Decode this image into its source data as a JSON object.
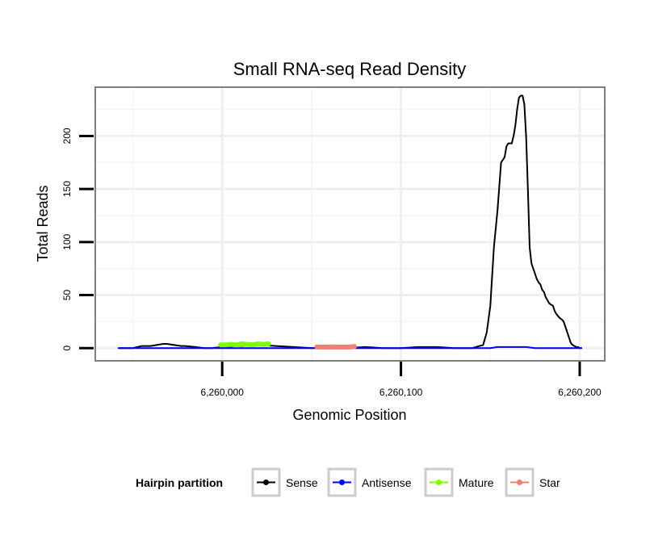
{
  "chart_data": {
    "type": "line",
    "title": "Small RNA-seq Read Density",
    "xlabel": "Genomic Position",
    "ylabel": "Total Reads",
    "xlim": [
      6259929,
      6260214
    ],
    "ylim": [
      -12,
      246
    ],
    "x_ticks": [
      6260000,
      6260100,
      6260200
    ],
    "x_tick_labels": [
      "6,260,000",
      "6,260,100",
      "6,260,200"
    ],
    "y_ticks": [
      0,
      50,
      100,
      150,
      200
    ],
    "y_tick_labels": [
      "0",
      "50",
      "100",
      "150",
      "200"
    ],
    "grid": true,
    "legend": {
      "title": "Hairpin partition",
      "position": "bottom",
      "entries": [
        {
          "label": "Sense",
          "color": "#000000"
        },
        {
          "label": "Antisense",
          "color": "#0000ff"
        },
        {
          "label": "Mature",
          "color": "#7cfc00"
        },
        {
          "label": "Star",
          "color": "#f08070"
        }
      ]
    },
    "series": [
      {
        "name": "Sense",
        "color": "#000000",
        "width": 2,
        "x": [
          6259942,
          6259950,
          6259955,
          6259960,
          6259967,
          6259969,
          6259977,
          6259979,
          6259985,
          6259990,
          6259994,
          6260000,
          6260010,
          6260020,
          6260030,
          6260040,
          6260050,
          6260060,
          6260070,
          6260080,
          6260090,
          6260100,
          6260110,
          6260120,
          6260130,
          6260140,
          6260144,
          6260146,
          6260148,
          6260150,
          6260152,
          6260154,
          6260156,
          6260158,
          6260159,
          6260160,
          6260162,
          6260163,
          6260164,
          6260165,
          6260166,
          6260167,
          6260168,
          6260169,
          6260170,
          6260171,
          6260172,
          6260173,
          6260174,
          6260175,
          6260176,
          6260177,
          6260178,
          6260179,
          6260180,
          6260181,
          6260182,
          6260183,
          6260184,
          6260185,
          6260186,
          6260187,
          6260188,
          6260189,
          6260190,
          6260191,
          6260192,
          6260193,
          6260194,
          6260195,
          6260196,
          6260197,
          6260198,
          6260199,
          6260200,
          6260201
        ],
        "y": [
          0,
          0,
          2,
          2,
          4,
          4,
          2,
          2,
          1,
          0,
          0,
          1,
          2,
          3,
          2,
          1,
          0,
          1,
          0,
          1,
          0,
          0,
          1,
          1,
          0,
          0,
          2,
          3,
          15,
          40,
          95,
          130,
          175,
          180,
          190,
          193,
          193,
          200,
          210,
          225,
          236,
          238,
          238,
          230,
          200,
          150,
          95,
          80,
          75,
          70,
          65,
          62,
          60,
          55,
          53,
          48,
          45,
          42,
          41,
          40,
          35,
          32,
          30,
          28,
          27,
          25,
          20,
          15,
          10,
          5,
          3,
          2,
          1,
          1,
          0,
          0
        ]
      },
      {
        "name": "Antisense",
        "color": "#0000ff",
        "width": 2,
        "x": [
          6259942,
          6260040,
          6260100,
          6260150,
          6260154,
          6260170,
          6260175,
          6260201
        ],
        "y": [
          0,
          0,
          0,
          0,
          1,
          1,
          0,
          0
        ]
      },
      {
        "name": "Mature",
        "color": "#7cfc00",
        "width": 6,
        "x": [
          6259999,
          6260002,
          6260005,
          6260008,
          6260011,
          6260014,
          6260017,
          6260020,
          6260023,
          6260026
        ],
        "y": [
          3,
          3,
          3.5,
          3,
          4,
          3.5,
          3,
          4,
          3.5,
          4
        ]
      },
      {
        "name": "Star",
        "color": "#f08070",
        "width": 6,
        "x": [
          6260053,
          6260056,
          6260059,
          6260062,
          6260065,
          6260068,
          6260071,
          6260074
        ],
        "y": [
          1,
          1,
          1,
          1.2,
          1,
          1,
          1,
          1.5
        ]
      }
    ]
  }
}
